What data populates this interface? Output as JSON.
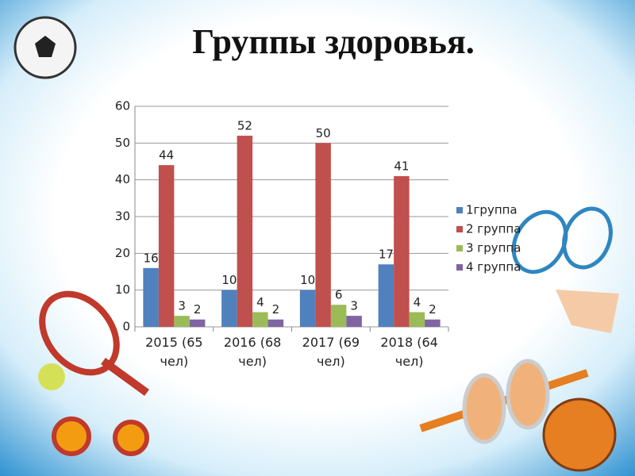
{
  "chart_data": {
    "type": "bar",
    "title": "Группы здоровья.",
    "categories": [
      "2015 (65 чел)",
      "2016 (68 чел)",
      "2017 (69 чел)",
      "2018 (64 чел)"
    ],
    "series": [
      {
        "name": "1группа",
        "color": "#4f81bd",
        "values": [
          16,
          10,
          10,
          17
        ]
      },
      {
        "name": "2 группа",
        "color": "#c0504d",
        "values": [
          44,
          52,
          50,
          41
        ]
      },
      {
        "name": "3 группа",
        "color": "#9bbb59",
        "values": [
          3,
          4,
          6,
          4
        ]
      },
      {
        "name": "4 группа",
        "color": "#8064a2",
        "values": [
          2,
          2,
          3,
          2
        ]
      }
    ],
    "ylim": [
      0,
      60
    ],
    "yticks": [
      0,
      10,
      20,
      30,
      40,
      50,
      60
    ],
    "grid": true,
    "legend": "right"
  }
}
